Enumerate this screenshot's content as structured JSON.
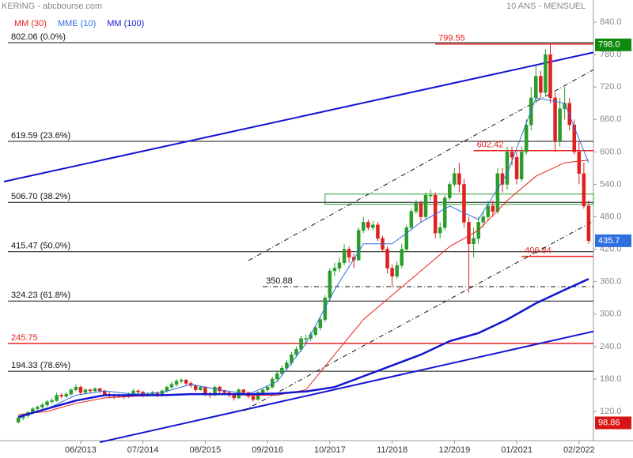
{
  "header": {
    "title": "KERING - abcbourse.com",
    "period": "10 ANS - MENSUEL"
  },
  "chart_data": {
    "type": "candlestick",
    "x": [
      "05/2012",
      "06/2012",
      "07/2012",
      "08/2012",
      "09/2012",
      "10/2012",
      "11/2012",
      "12/2012",
      "01/2013",
      "02/2013",
      "03/2013",
      "04/2013",
      "05/2013",
      "06/2013",
      "07/2013",
      "08/2013",
      "09/2013",
      "10/2013",
      "11/2013",
      "12/2013",
      "01/2014",
      "02/2014",
      "03/2014",
      "04/2014",
      "05/2014",
      "06/2014",
      "07/2014",
      "08/2014",
      "09/2014",
      "10/2014",
      "11/2014",
      "12/2014",
      "01/2015",
      "02/2015",
      "03/2015",
      "04/2015",
      "05/2015",
      "06/2015",
      "07/2015",
      "08/2015",
      "09/2015",
      "10/2015",
      "11/2015",
      "12/2015",
      "01/2016",
      "02/2016",
      "03/2016",
      "04/2016",
      "05/2016",
      "06/2016",
      "07/2016",
      "08/2016",
      "09/2016",
      "10/2016",
      "11/2016",
      "12/2016",
      "01/2017",
      "02/2017",
      "03/2017",
      "04/2017",
      "05/2017",
      "06/2017",
      "07/2017",
      "08/2017",
      "09/2017",
      "10/2017",
      "11/2017",
      "12/2017",
      "01/2018",
      "02/2018",
      "03/2018",
      "04/2018",
      "05/2018",
      "06/2018",
      "07/2018",
      "08/2018",
      "09/2018",
      "10/2018",
      "11/2018",
      "12/2018",
      "01/2019",
      "02/2019",
      "03/2019",
      "04/2019",
      "05/2019",
      "06/2019",
      "07/2019",
      "08/2019",
      "09/2019",
      "10/2019",
      "11/2019",
      "12/2019",
      "01/2020",
      "02/2020",
      "03/2020",
      "04/2020",
      "05/2020",
      "06/2020",
      "07/2020",
      "08/2020",
      "09/2020",
      "10/2020",
      "11/2020",
      "12/2020",
      "01/2021",
      "02/2021",
      "03/2021",
      "04/2021",
      "05/2021",
      "06/2021",
      "07/2021",
      "08/2021",
      "09/2021",
      "10/2021",
      "11/2021",
      "12/2021",
      "01/2022",
      "02/2022",
      "03/2022",
      "04/2022"
    ],
    "open": [
      100,
      108,
      112,
      118,
      125,
      128,
      132,
      138,
      140,
      150,
      148,
      152,
      160,
      165,
      155,
      160,
      158,
      162,
      158,
      152,
      150,
      148,
      150,
      147,
      152,
      158,
      156,
      150,
      152,
      155,
      150,
      158,
      165,
      170,
      176,
      178,
      172,
      168,
      160,
      165,
      152,
      150,
      165,
      158,
      155,
      150,
      145,
      160,
      155,
      148,
      142,
      155,
      160,
      165,
      180,
      190,
      200,
      210,
      225,
      235,
      255,
      255,
      262,
      275,
      290,
      330,
      380,
      385,
      395,
      420,
      405,
      400,
      455,
      470,
      460,
      465,
      440,
      420,
      385,
      370,
      390,
      420,
      460,
      490,
      505,
      480,
      520,
      520,
      450,
      460,
      515,
      540,
      560,
      540,
      470,
      430,
      440,
      470,
      480,
      500,
      490,
      560,
      540,
      600,
      590,
      550,
      600,
      650,
      700,
      740,
      710,
      780,
      700,
      620,
      680,
      690,
      650,
      600,
      560,
      500
    ],
    "high": [
      112,
      116,
      121,
      128,
      131,
      136,
      141,
      145,
      155,
      154,
      156,
      163,
      170,
      168,
      163,
      162,
      165,
      164,
      160,
      156,
      153,
      153,
      152,
      155,
      162,
      161,
      158,
      155,
      158,
      157,
      161,
      168,
      175,
      180,
      182,
      180,
      175,
      170,
      168,
      167,
      156,
      168,
      167,
      160,
      158,
      153,
      163,
      162,
      157,
      150,
      158,
      163,
      168,
      184,
      194,
      205,
      215,
      230,
      240,
      260,
      262,
      268,
      280,
      295,
      335,
      385,
      395,
      405,
      430,
      425,
      412,
      460,
      480,
      475,
      472,
      470,
      445,
      425,
      392,
      398,
      430,
      465,
      495,
      512,
      510,
      525,
      530,
      525,
      470,
      520,
      545,
      570,
      580,
      550,
      480,
      460,
      480,
      490,
      510,
      510,
      570,
      570,
      610,
      610,
      600,
      610,
      660,
      720,
      760,
      750,
      790,
      799.55,
      710,
      700,
      720,
      700,
      660,
      620,
      580,
      510
    ],
    "low": [
      98,
      104,
      109,
      115,
      122,
      125,
      129,
      134,
      138,
      144,
      145,
      149,
      157,
      150,
      152,
      154,
      155,
      154,
      149,
      146,
      143,
      145,
      143,
      145,
      150,
      152,
      146,
      147,
      150,
      146,
      148,
      155,
      162,
      166,
      172,
      168,
      164,
      156,
      158,
      148,
      145,
      148,
      154,
      150,
      146,
      140,
      143,
      150,
      144,
      138,
      140,
      152,
      156,
      162,
      176,
      186,
      196,
      205,
      220,
      230,
      245,
      250,
      258,
      270,
      285,
      325,
      370,
      378,
      390,
      395,
      385,
      398,
      450,
      455,
      455,
      435,
      415,
      375,
      350,
      365,
      385,
      415,
      455,
      485,
      470,
      475,
      510,
      440,
      440,
      455,
      510,
      535,
      525,
      460,
      340,
      405,
      430,
      460,
      475,
      480,
      485,
      525,
      530,
      575,
      540,
      545,
      595,
      640,
      690,
      700,
      705,
      690,
      600,
      610,
      660,
      640,
      595,
      540,
      495,
      430
    ],
    "close": [
      108,
      112,
      118,
      125,
      128,
      132,
      138,
      140,
      150,
      148,
      152,
      160,
      165,
      155,
      160,
      158,
      162,
      158,
      152,
      150,
      148,
      150,
      147,
      152,
      158,
      156,
      150,
      152,
      155,
      150,
      158,
      165,
      170,
      176,
      178,
      172,
      168,
      160,
      165,
      152,
      150,
      165,
      158,
      155,
      150,
      145,
      160,
      155,
      148,
      142,
      155,
      160,
      165,
      180,
      190,
      200,
      210,
      225,
      235,
      255,
      255,
      262,
      275,
      290,
      330,
      380,
      385,
      395,
      420,
      405,
      400,
      455,
      470,
      460,
      465,
      440,
      420,
      385,
      370,
      390,
      420,
      460,
      490,
      505,
      480,
      520,
      520,
      450,
      460,
      515,
      540,
      560,
      540,
      470,
      430,
      440,
      470,
      480,
      500,
      490,
      560,
      540,
      600,
      590,
      550,
      600,
      650,
      700,
      740,
      710,
      780,
      700,
      620,
      680,
      690,
      650,
      600,
      560,
      500,
      435.7
    ],
    "colors": {
      "up": "#2a9d2a",
      "down": "#e01f1f"
    },
    "series": [
      {
        "name": "MM (30)",
        "color": "#e8211c",
        "width": 1,
        "x": [
          "05/2012",
          "11/2012",
          "05/2013",
          "11/2013",
          "05/2014",
          "11/2014",
          "05/2015",
          "11/2015",
          "05/2016",
          "11/2016",
          "05/2017",
          "11/2017",
          "05/2018",
          "11/2018",
          "05/2019",
          "11/2019",
          "05/2020",
          "11/2020",
          "05/2021",
          "11/2021",
          "04/2022"
        ],
        "values": [
          114,
          120,
          135,
          145,
          148,
          150,
          152,
          152,
          150,
          150,
          160,
          225,
          290,
          335,
          380,
          425,
          455,
          510,
          555,
          580,
          585
        ]
      },
      {
        "name": "MME (10)",
        "color": "#2f6fe0",
        "width": 1,
        "x": [
          "05/2012",
          "11/2012",
          "05/2013",
          "11/2013",
          "05/2014",
          "11/2014",
          "05/2015",
          "11/2015",
          "05/2016",
          "11/2016",
          "05/2017",
          "11/2017",
          "05/2018",
          "11/2018",
          "05/2019",
          "11/2019",
          "05/2020",
          "11/2020",
          "05/2021",
          "11/2021",
          "04/2022"
        ],
        "values": [
          108,
          125,
          150,
          158,
          152,
          155,
          170,
          160,
          152,
          175,
          245,
          345,
          430,
          430,
          470,
          500,
          475,
          560,
          700,
          690,
          580
        ]
      },
      {
        "name": "MM (100)",
        "color": "#1414d4",
        "width": 2.5,
        "x": [
          "05/2012",
          "11/2012",
          "05/2013",
          "11/2013",
          "05/2014",
          "11/2014",
          "05/2015",
          "11/2015",
          "05/2016",
          "11/2016",
          "05/2017",
          "11/2017",
          "05/2018",
          "11/2018",
          "05/2019",
          "11/2019",
          "05/2020",
          "11/2020",
          "05/2021",
          "11/2021",
          "04/2022"
        ],
        "values": [
          110,
          125,
          140,
          150,
          150,
          150,
          152,
          152,
          152,
          153,
          157,
          165,
          185,
          205,
          225,
          250,
          265,
          290,
          320,
          345,
          365
        ]
      }
    ],
    "levels": [
      {
        "value": 802.06,
        "label": "802.06  (0.0%)",
        "color": "#111111",
        "style": "solid"
      },
      {
        "value": 619.59,
        "label": "619.59  (23.6%)",
        "color": "#111111",
        "style": "solid"
      },
      {
        "value": 506.7,
        "label": "506.70  (38.2%)",
        "color": "#111111",
        "style": "solid"
      },
      {
        "value": 415.47,
        "label": "415.47  (50.0%)",
        "color": "#111111",
        "style": "solid"
      },
      {
        "value": 324.23,
        "label": "324.23  (61.8%)",
        "color": "#111111",
        "style": "solid"
      },
      {
        "value": 194.33,
        "label": "194.33  (78.6%)",
        "color": "#111111",
        "style": "solid"
      },
      {
        "value": 245.75,
        "color": "#e8211c",
        "style": "solid"
      },
      {
        "value": 799.55,
        "color": "#e8211c",
        "style": "solid",
        "start": "08/2019"
      },
      {
        "value": 602.42,
        "color": "#e8211c",
        "style": "solid",
        "start": "04/2020"
      },
      {
        "value": 406.84,
        "color": "#e8211c",
        "style": "solid",
        "start": "02/2021"
      },
      {
        "value": 350.88,
        "color": "#111111",
        "style": "dashdot",
        "start": "08/2016"
      }
    ],
    "zones": [
      {
        "start": "09/2017",
        "low": 503,
        "high": 522,
        "color": "#2a9d2a"
      }
    ],
    "trendlines": [
      {
        "color": "#1414d4",
        "width": 2,
        "style": "solid",
        "x": [
          "02/2012",
          "05/2022"
        ],
        "y": [
          545,
          784
        ]
      },
      {
        "color": "#1414d4",
        "width": 2,
        "style": "solid",
        "x": [
          "10/2013",
          "05/2022"
        ],
        "y": [
          63,
          268
        ]
      },
      {
        "color": "#111111",
        "width": 1,
        "style": "dashdot",
        "x": [
          "05/2016",
          "05/2022"
        ],
        "y": [
          399,
          752
        ]
      },
      {
        "color": "#111111",
        "width": 1,
        "style": "dashdot",
        "x": [
          "04/2016",
          "05/2022"
        ],
        "y": [
          121,
          472
        ]
      }
    ],
    "markers": [
      {
        "value": 798,
        "label": "798.0",
        "color": "#0e8a0e"
      },
      {
        "value": 435.7,
        "label": "435.7",
        "color": "#2f6fe0"
      },
      {
        "value": 98.86,
        "color": "#d81414"
      }
    ],
    "xlim": [
      "02/2012",
      "05/2022"
    ],
    "xticks": [
      "06/2013",
      "07/2014",
      "08/2015",
      "09/2016",
      "10/2017",
      "11/2018",
      "12/2019",
      "01/2021",
      "02/2022"
    ],
    "ylim": [
      66,
      881
    ],
    "yticks": [
      {
        "value": 120,
        "label": "120.0"
      },
      {
        "value": 180,
        "label": "180.0"
      },
      {
        "value": 240,
        "label": "240.0"
      },
      {
        "value": 300,
        "label": "300.0"
      },
      {
        "value": 360,
        "label": "360.0"
      },
      {
        "value": 420,
        "label": "420.0"
      },
      {
        "value": 480,
        "label": "480.0"
      },
      {
        "value": 540,
        "label": "540.0"
      },
      {
        "value": 600,
        "label": "600.0"
      },
      {
        "value": 660,
        "label": "660.0"
      },
      {
        "value": 720,
        "label": "720.0"
      },
      {
        "value": 780,
        "label": "780.0"
      },
      {
        "value": 840,
        "label": "840.0"
      }
    ]
  }
}
